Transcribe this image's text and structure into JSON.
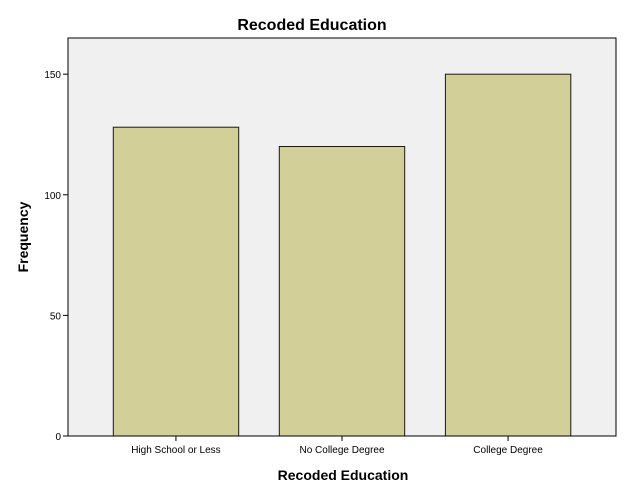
{
  "chart_data": {
    "type": "bar",
    "title": "Recoded Education",
    "xlabel": "Recoded Education",
    "ylabel": "Frequency",
    "categories": [
      "High School or Less",
      "No College Degree",
      "College Degree"
    ],
    "values": [
      128,
      120,
      150
    ],
    "ylim": [
      0,
      165
    ],
    "yticks": [
      0,
      50,
      100,
      150
    ],
    "grid": false,
    "legend": "none"
  },
  "colors": {
    "bar_fill": "#d3cf99",
    "bar_stroke": "#1a1a1a",
    "plot_background": "#f0f0f0",
    "axis": "#000000"
  }
}
